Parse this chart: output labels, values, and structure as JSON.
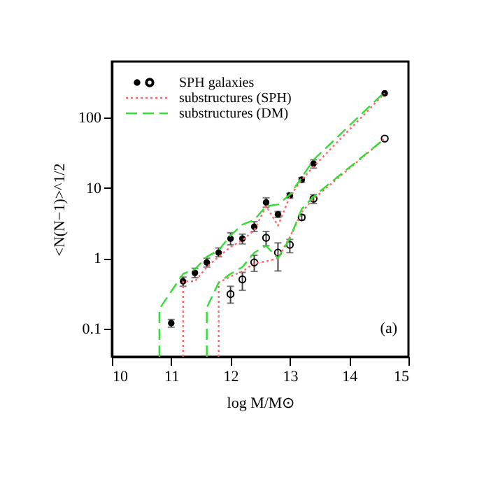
{
  "chart_data": {
    "type": "line",
    "xlabel": "log M/M⊙",
    "ylabel": "<N(N−1)>^1/2",
    "log": "y",
    "xlim": [
      10,
      15
    ],
    "xticks": [
      10,
      11,
      12,
      13,
      14,
      15
    ],
    "ylim": [
      0.04,
      620
    ],
    "yticks": [
      0.1,
      1,
      10,
      100
    ],
    "legend": "top left",
    "grid": false,
    "annotations": [
      "(a)"
    ],
    "series": [
      {
        "name": "SPH galaxies",
        "type": "scatter",
        "marker": "circle",
        "color": "#000000",
        "x": [
          11.0,
          11.2,
          11.4,
          11.6,
          11.8,
          12.0,
          12.2,
          12.4,
          12.6,
          12.8,
          13.0,
          13.2,
          13.4,
          14.6
        ],
        "values": [
          0.12,
          0.47,
          0.62,
          0.87,
          1.2,
          1.9,
          1.9,
          2.8,
          6.2,
          4.2,
          7.8,
          13,
          22,
          220
        ],
        "errors": [
          [
            0.105,
            0.135
          ],
          [
            0.4,
            0.54
          ],
          [
            0.53,
            0.72
          ],
          [
            0.75,
            1.0
          ],
          [
            1.05,
            1.4
          ],
          [
            1.55,
            2.3
          ],
          [
            1.6,
            2.2
          ],
          [
            2.4,
            3.3
          ],
          [
            5.3,
            7.2
          ],
          [
            3.8,
            4.6
          ],
          [
            7.2,
            8.4
          ],
          [
            12,
            14
          ],
          [
            19,
            25
          ],
          null
        ]
      },
      {
        "type": "scatter",
        "marker": "circle",
        "color": "#000000",
        "x": [
          12.0,
          12.2,
          12.4,
          12.6,
          12.8,
          13.0,
          13.2,
          13.4,
          14.6
        ],
        "values": [
          0.31,
          0.5,
          0.87,
          1.95,
          1.2,
          1.55,
          3.8,
          7.0,
          50
        ],
        "errors": [
          [
            0.23,
            0.4
          ],
          [
            0.35,
            0.63
          ],
          [
            0.65,
            1.1
          ],
          [
            1.5,
            2.4
          ],
          [
            0.66,
            1.65
          ],
          [
            1.2,
            1.85
          ],
          [
            3.5,
            4.1
          ],
          [
            6.0,
            8.0
          ],
          null
        ]
      },
      {
        "name": "substructures (SPH)",
        "line_style": "dotted",
        "color": "#ff6666",
        "x": [
          11.2,
          11.2,
          11.4,
          11.6,
          11.8,
          12.0,
          12.2,
          12.4,
          12.6,
          12.8,
          13.0,
          13.2,
          13.4,
          14.6
        ],
        "values": [
          0.04,
          0.47,
          0.47,
          0.75,
          1.05,
          1.45,
          1.8,
          2.5,
          5.5,
          2.9,
          7.5,
          13,
          20,
          220
        ]
      },
      {
        "name": "substructures (DM)",
        "line_style": "dashed",
        "color": "#33dd33",
        "x": [
          10.8,
          10.8,
          11.2,
          11.4,
          11.6,
          11.8,
          12.0,
          12.2,
          12.4,
          12.6,
          12.8,
          13.0,
          13.2,
          13.4,
          14.6
        ],
        "values": [
          0.04,
          0.19,
          0.6,
          0.7,
          1.05,
          1.3,
          2.1,
          3.0,
          3.5,
          5.5,
          5.8,
          8,
          14,
          25,
          230
        ]
      },
      {
        "line_style": "dotted",
        "color": "#ff6666",
        "x": [
          11.8,
          11.8,
          12.0,
          12.2,
          12.4,
          12.6,
          12.8,
          13.0,
          13.2,
          13.4,
          14.6
        ],
        "values": [
          0.04,
          0.45,
          0.55,
          0.65,
          0.85,
          0.9,
          1.0,
          2.0,
          4.5,
          7,
          50
        ]
      },
      {
        "line_style": "dashed",
        "color": "#33dd33",
        "x": [
          11.6,
          11.6,
          11.8,
          12.0,
          12.2,
          12.4,
          12.6,
          12.8,
          13.0,
          13.2,
          13.4,
          14.6
        ],
        "values": [
          0.04,
          0.2,
          0.45,
          0.6,
          0.75,
          1.2,
          1.5,
          1.0,
          1.9,
          5,
          7.5,
          50
        ]
      }
    ]
  }
}
